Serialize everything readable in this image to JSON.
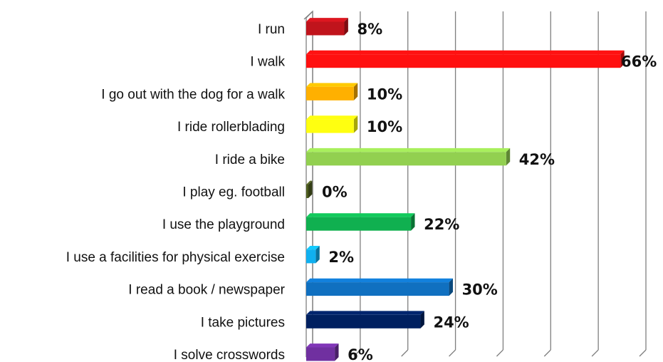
{
  "chart_data": {
    "type": "bar",
    "orientation": "horizontal",
    "categories": [
      "I run",
      "I walk",
      "I go out with the dog for a walk",
      "I ride rollerblading",
      "I ride a bike",
      "I play eg. football",
      "I use the playground",
      "I use a facilities for physical exercise",
      "I read a book / newspaper",
      "I take pictures",
      "I solve crosswords"
    ],
    "values": [
      8,
      66,
      10,
      10,
      42,
      0,
      22,
      2,
      30,
      24,
      6
    ],
    "data_labels": [
      "8%",
      "66%",
      "10%",
      "10%",
      "42%",
      "0%",
      "22%",
      "2%",
      "30%",
      "24%",
      "6%"
    ],
    "colors": [
      "#c0141c",
      "#ff1010",
      "#ffb000",
      "#ffff10",
      "#92d050",
      "#4f5e20",
      "#10b050",
      "#10b0f0",
      "#1070c0",
      "#002060",
      "#7030a0"
    ],
    "xlim": [
      0,
      70
    ],
    "grid": true,
    "legend": "none",
    "style": "3d"
  }
}
